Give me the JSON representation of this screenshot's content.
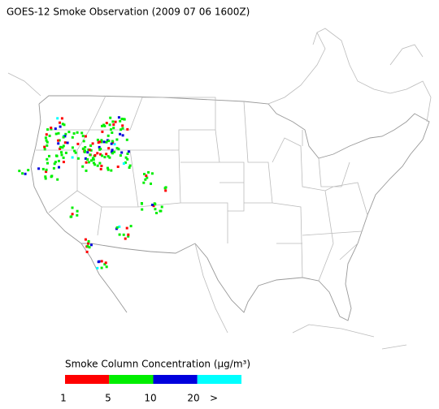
{
  "title": "GOES-12 Smoke Observation (2009 07 06  1600Z)",
  "legend": {
    "label": "Smoke Column Concentration (μg/m³)",
    "colors": [
      "#ff0000",
      "#00ee00",
      "#0000dd",
      "#00ffff"
    ],
    "ticks": [
      "1",
      "5",
      "10",
      "20",
      ">"
    ]
  }
}
